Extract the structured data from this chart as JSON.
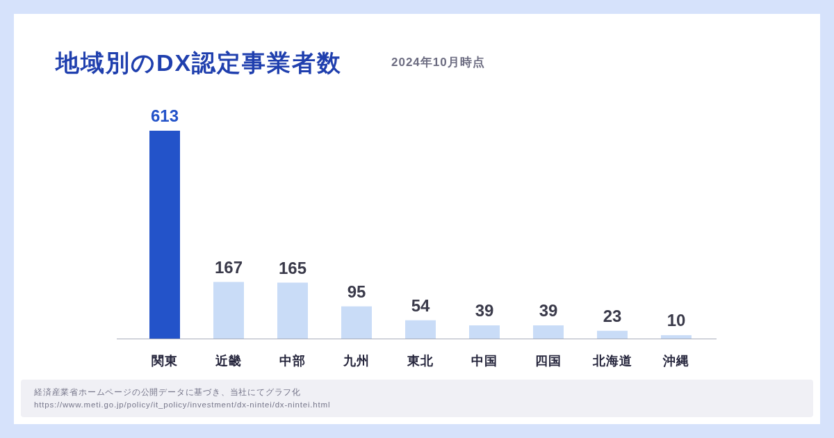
{
  "chart_data": {
    "type": "bar",
    "title": "地域別のDX認定事業者数",
    "subtitle": "2024年10月時点",
    "categories": [
      "関東",
      "近畿",
      "中部",
      "九州",
      "東北",
      "中国",
      "四国",
      "北海道",
      "沖縄"
    ],
    "values": [
      613,
      167,
      165,
      95,
      54,
      39,
      39,
      23,
      10
    ],
    "colors": [
      "#2353c9",
      "#c9dcf7",
      "#c9dcf7",
      "#c9dcf7",
      "#c9dcf7",
      "#c9dcf7",
      "#c9dcf7",
      "#c9dcf7",
      "#c9dcf7"
    ],
    "data_labels": true,
    "annotations": [
      "経済産業省ホームページの公開データに基づき、当社にてグラフ化",
      "https://www.meti.go.jp/policy/it_policy/investment/dx-nintei/dx-nintei.html"
    ]
  }
}
